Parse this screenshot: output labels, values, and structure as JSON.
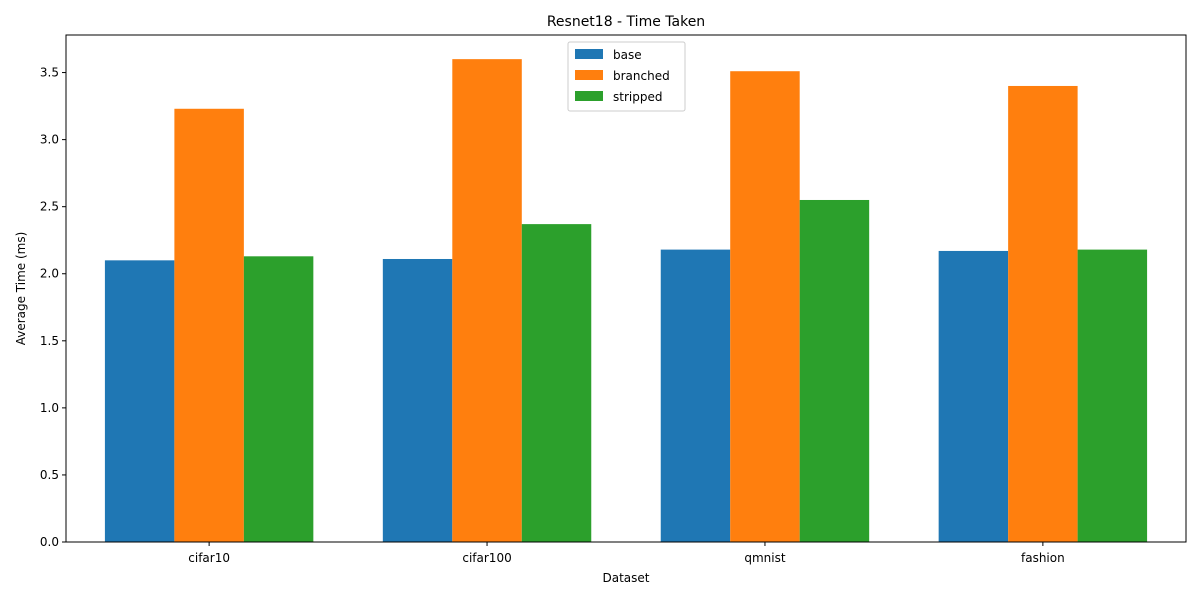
{
  "chart_data": {
    "type": "bar",
    "title": "Resnet18 - Time Taken",
    "xlabel": "Dataset",
    "ylabel": "Average Time (ms)",
    "categories": [
      "cifar10",
      "cifar100",
      "qmnist",
      "fashion"
    ],
    "series": [
      {
        "name": "base",
        "color": "#1f77b4",
        "values": [
          2.1,
          2.11,
          2.18,
          2.17
        ]
      },
      {
        "name": "branched",
        "color": "#ff7f0e",
        "values": [
          3.23,
          3.6,
          3.51,
          3.4
        ]
      },
      {
        "name": "stripped",
        "color": "#2ca02c",
        "values": [
          2.13,
          2.37,
          2.55,
          2.18
        ]
      }
    ],
    "ylim": [
      0,
      3.78
    ],
    "yticks": [
      "0.0",
      "0.5",
      "1.0",
      "1.5",
      "2.0",
      "2.5",
      "3.0",
      "3.5"
    ],
    "grid": false,
    "legend_position": "top-center"
  }
}
